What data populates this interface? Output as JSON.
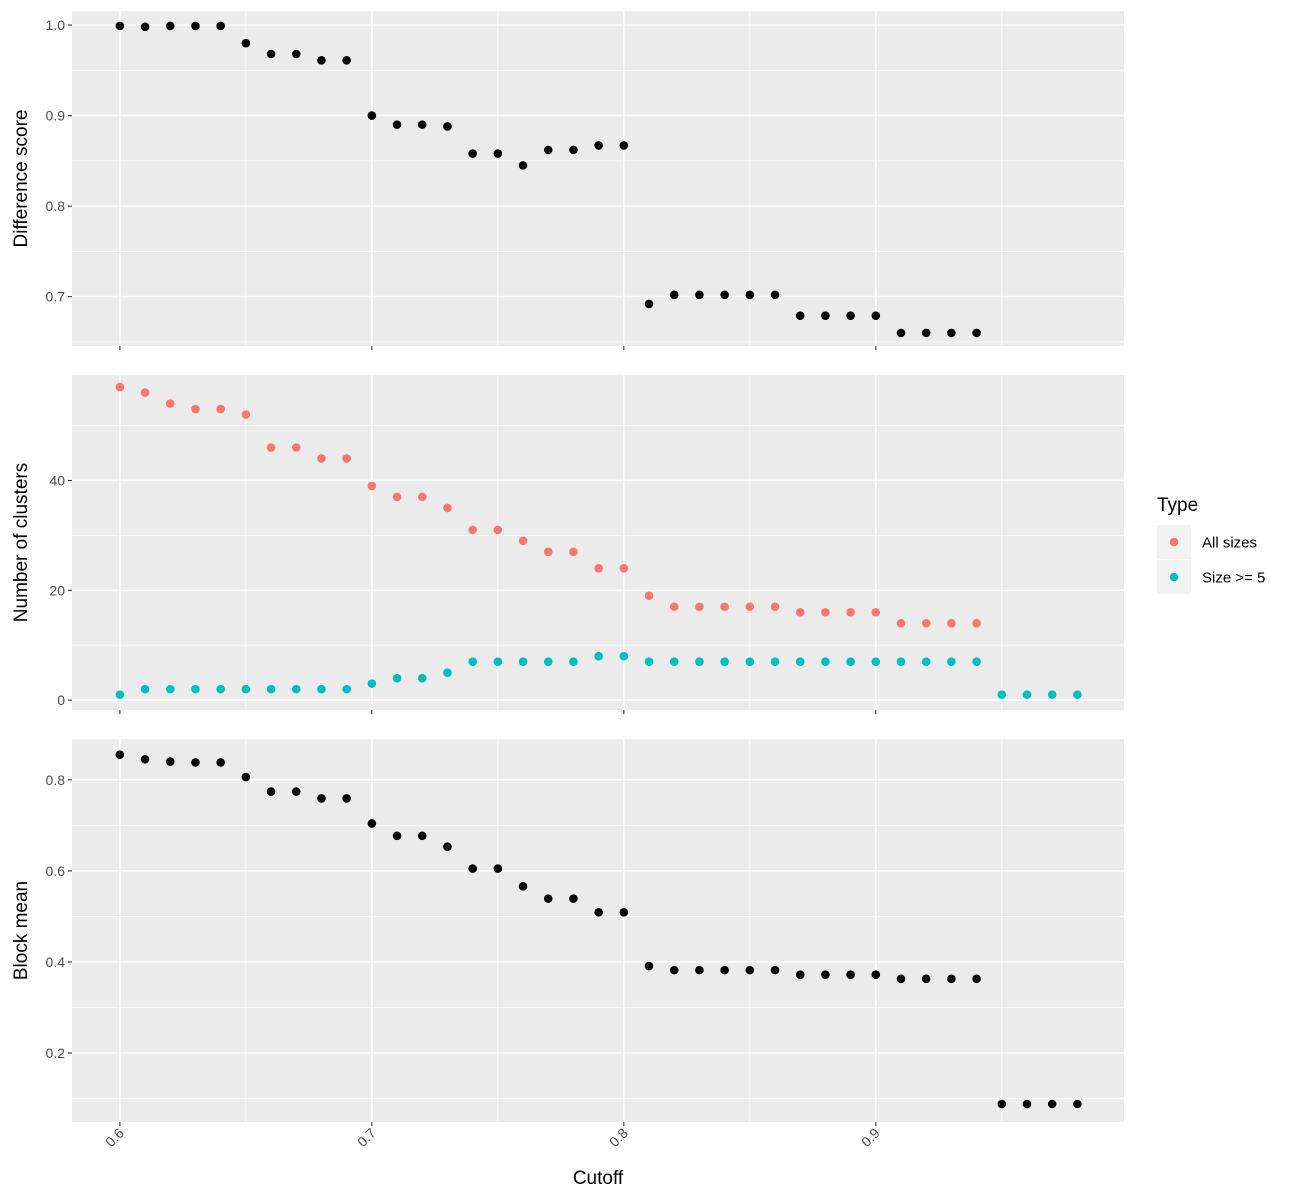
{
  "chart_data": {
    "type": "scatter",
    "xlabel": "Cutoff",
    "xlim": [
      0.581,
      0.9985
    ],
    "xticks": [
      0.6,
      0.7,
      0.8,
      0.9
    ],
    "xtick_labels": [
      "0.6",
      "0.7",
      "0.8",
      "0.9"
    ],
    "grid": true,
    "legend": {
      "title": "Type",
      "placement": "right",
      "entries": [
        {
          "label": "All sizes",
          "color": "#F8766D"
        },
        {
          "label": "Size >= 5",
          "color": "#00BFC4"
        }
      ]
    },
    "panels": [
      {
        "ylabel": "Difference score",
        "ylim": [
          0.6455,
          1.0155
        ],
        "yticks": [
          0.7,
          0.8,
          0.9,
          1.0
        ],
        "ytick_labels": [
          "0.7",
          "0.8",
          "0.9",
          "1.0"
        ],
        "series": [
          {
            "color": "#000000",
            "x": [
              0.6,
              0.61,
              0.62,
              0.63,
              0.64,
              0.65,
              0.66,
              0.67,
              0.68,
              0.69,
              0.7,
              0.71,
              0.72,
              0.73,
              0.74,
              0.75,
              0.76,
              0.77,
              0.78,
              0.79,
              0.8,
              0.81,
              0.82,
              0.83,
              0.84,
              0.85,
              0.86,
              0.87,
              0.88,
              0.89,
              0.9,
              0.91,
              0.92,
              0.93,
              0.94
            ],
            "y": [
              0.999,
              0.998,
              0.999,
              0.999,
              0.999,
              0.98,
              0.968,
              0.968,
              0.961,
              0.961,
              0.9,
              0.89,
              0.89,
              0.888,
              0.858,
              0.858,
              0.845,
              0.862,
              0.862,
              0.867,
              0.867,
              0.692,
              0.702,
              0.702,
              0.702,
              0.702,
              0.702,
              0.679,
              0.679,
              0.679,
              0.679,
              0.66,
              0.66,
              0.66,
              0.66
            ]
          }
        ]
      },
      {
        "ylabel": "Number of clusters",
        "ylim": [
          -1.8,
          59.2
        ],
        "yticks": [
          0,
          20,
          40
        ],
        "ytick_labels": [
          "0",
          "20",
          "40"
        ],
        "series": [
          {
            "name": "All sizes",
            "color": "#F8766D",
            "x": [
              0.6,
              0.61,
              0.62,
              0.63,
              0.64,
              0.65,
              0.66,
              0.67,
              0.68,
              0.69,
              0.7,
              0.71,
              0.72,
              0.73,
              0.74,
              0.75,
              0.76,
              0.77,
              0.78,
              0.79,
              0.8,
              0.81,
              0.82,
              0.83,
              0.84,
              0.85,
              0.86,
              0.87,
              0.88,
              0.89,
              0.9,
              0.91,
              0.92,
              0.93,
              0.94
            ],
            "y": [
              57,
              56,
              54,
              53,
              53,
              52,
              46,
              46,
              44,
              44,
              39,
              37,
              37,
              35,
              31,
              31,
              29,
              27,
              27,
              24,
              24,
              19,
              17,
              17,
              17,
              17,
              17,
              16,
              16,
              16,
              16,
              14,
              14,
              14,
              14
            ]
          },
          {
            "name": "Size >= 5",
            "color": "#00BFC4",
            "x": [
              0.6,
              0.61,
              0.62,
              0.63,
              0.64,
              0.65,
              0.66,
              0.67,
              0.68,
              0.69,
              0.7,
              0.71,
              0.72,
              0.73,
              0.74,
              0.75,
              0.76,
              0.77,
              0.78,
              0.79,
              0.8,
              0.81,
              0.82,
              0.83,
              0.84,
              0.85,
              0.86,
              0.87,
              0.88,
              0.89,
              0.9,
              0.91,
              0.92,
              0.93,
              0.94,
              0.95,
              0.96,
              0.97,
              0.98
            ],
            "y": [
              1,
              2,
              2,
              2,
              2,
              2,
              2,
              2,
              2,
              2,
              3,
              4,
              4,
              5,
              7,
              7,
              7,
              7,
              7,
              8,
              8,
              7,
              7,
              7,
              7,
              7,
              7,
              7,
              7,
              7,
              7,
              7,
              7,
              7,
              7,
              1,
              1,
              1,
              1
            ]
          }
        ]
      },
      {
        "ylabel": "Block mean",
        "ylim": [
          0.0485,
          0.8895
        ],
        "yticks": [
          0.2,
          0.4,
          0.6,
          0.8
        ],
        "ytick_labels": [
          "0.2",
          "0.4",
          "0.6",
          "0.8"
        ],
        "series": [
          {
            "color": "#000000",
            "x": [
              0.6,
              0.61,
              0.62,
              0.63,
              0.64,
              0.65,
              0.66,
              0.67,
              0.68,
              0.69,
              0.7,
              0.71,
              0.72,
              0.73,
              0.74,
              0.75,
              0.76,
              0.77,
              0.78,
              0.79,
              0.8,
              0.81,
              0.82,
              0.83,
              0.84,
              0.85,
              0.86,
              0.87,
              0.88,
              0.89,
              0.9,
              0.91,
              0.92,
              0.93,
              0.94,
              0.95,
              0.96,
              0.97,
              0.98
            ],
            "y": [
              0.855,
              0.845,
              0.84,
              0.838,
              0.838,
              0.806,
              0.774,
              0.774,
              0.759,
              0.759,
              0.704,
              0.677,
              0.677,
              0.653,
              0.605,
              0.605,
              0.566,
              0.539,
              0.539,
              0.509,
              0.509,
              0.391,
              0.382,
              0.382,
              0.382,
              0.382,
              0.382,
              0.372,
              0.372,
              0.372,
              0.372,
              0.363,
              0.363,
              0.363,
              0.363,
              0.088,
              0.088,
              0.088,
              0.088
            ]
          }
        ]
      }
    ]
  }
}
